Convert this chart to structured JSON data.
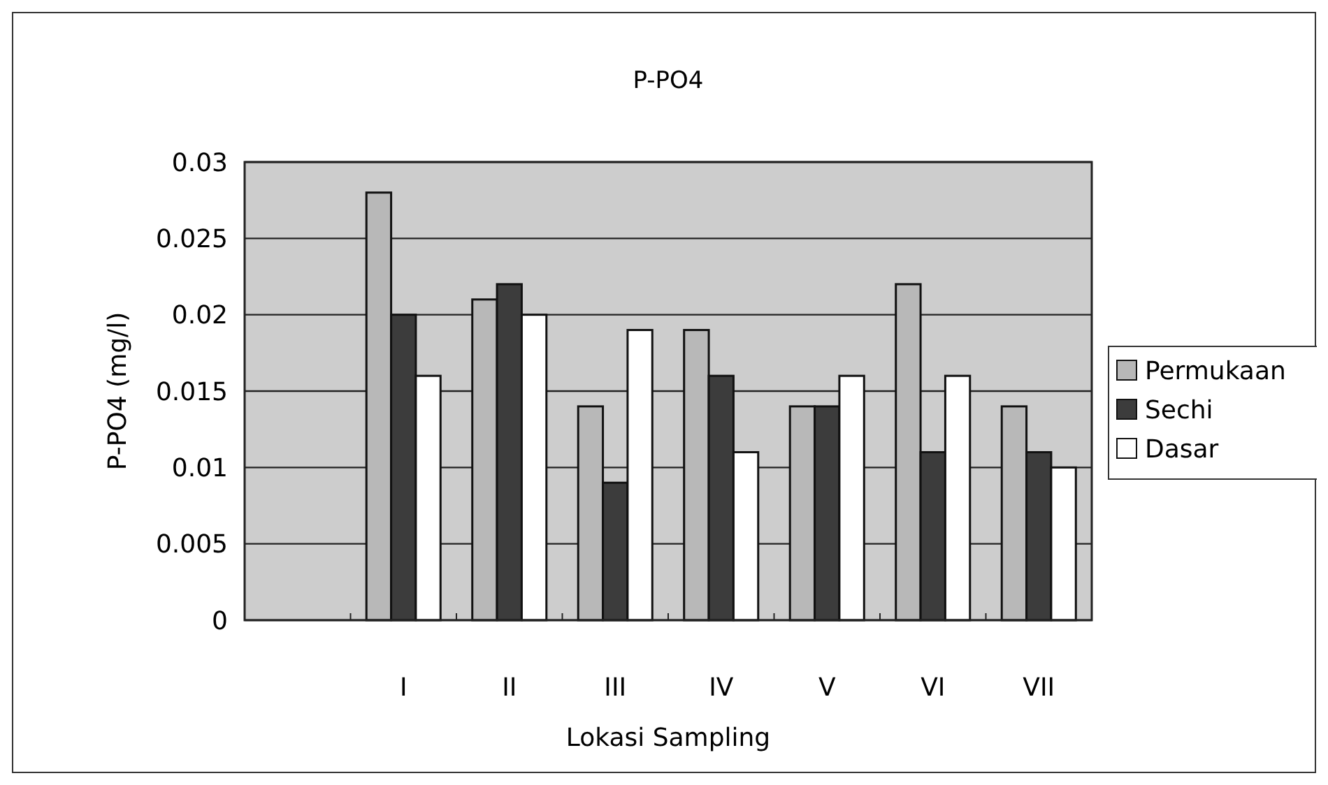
{
  "chart_data": {
    "type": "bar",
    "title": "P-PO4",
    "xlabel": "Lokasi Sampling",
    "ylabel": "P-PO4 (mg/l)",
    "categories": [
      null,
      "I",
      "II",
      "III",
      "IV",
      "V",
      "VI",
      "VII"
    ],
    "series": [
      {
        "name": "Permukaan",
        "color": "#b8b8b8",
        "values": [
          null,
          0.028,
          0.021,
          0.014,
          0.019,
          0.014,
          0.022,
          0.014
        ]
      },
      {
        "name": "Sechi",
        "color": "#3c3c3c",
        "values": [
          null,
          0.02,
          0.022,
          0.009,
          0.016,
          0.014,
          0.011,
          0.011
        ]
      },
      {
        "name": "Dasar",
        "color": "#ffffff",
        "values": [
          null,
          0.016,
          0.02,
          0.019,
          0.011,
          0.016,
          0.016,
          0.01
        ]
      }
    ],
    "ylim": [
      0,
      0.03
    ],
    "yticks": [
      0,
      0.005,
      0.01,
      0.015,
      0.02,
      0.025,
      0.03
    ],
    "grid": "y",
    "legend": "right"
  }
}
